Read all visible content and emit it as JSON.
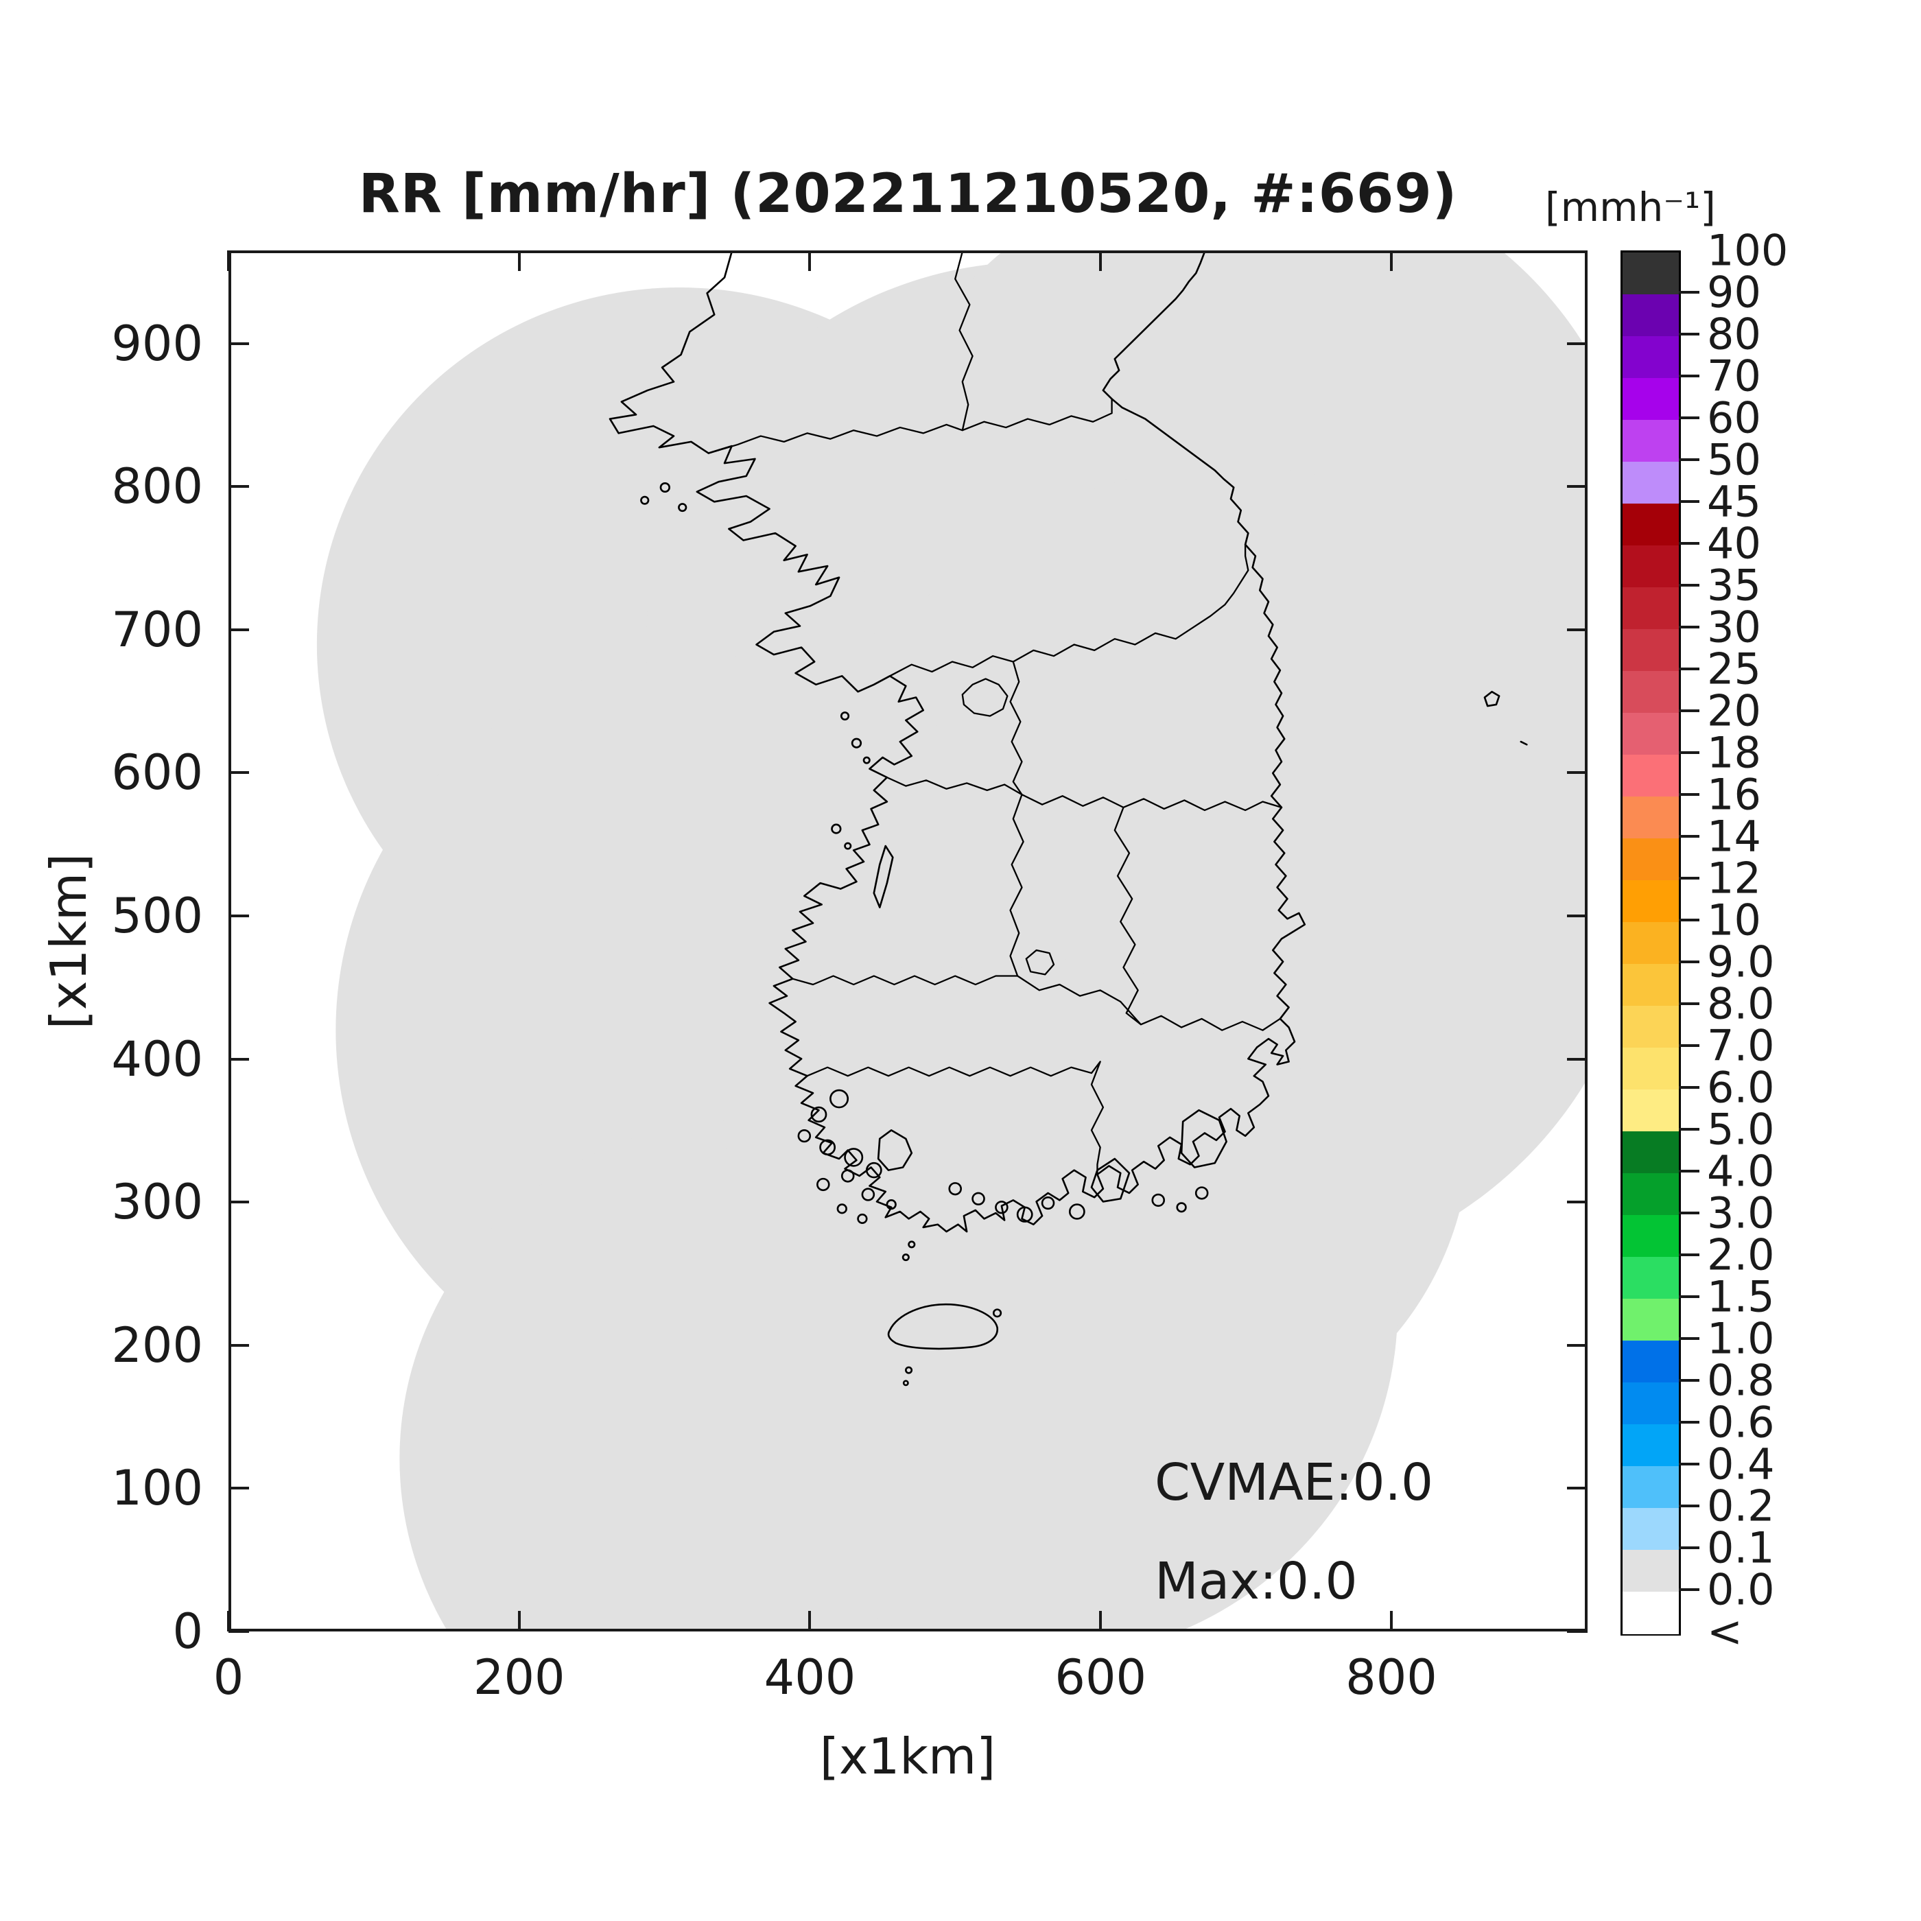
{
  "title": "RR [mm/hr] (202211210520, #:669)",
  "axes": {
    "x_label": "[x1km]",
    "y_label": "[x1km]",
    "x_ticks": [
      "0",
      "200",
      "400",
      "600",
      "800"
    ],
    "y_ticks": [
      "0",
      "100",
      "200",
      "300",
      "400",
      "500",
      "600",
      "700",
      "800",
      "900"
    ]
  },
  "annotations": {
    "cvmae": "CVMAE:0.0",
    "max": "Max:0.0"
  },
  "colorbar": {
    "unit": "[mmh⁻¹]",
    "labels": [
      "100",
      "90",
      "80",
      "70",
      "60",
      "50",
      "45",
      "40",
      "35",
      "30",
      "25",
      "20",
      "18",
      "16",
      "14",
      "12",
      "10",
      "9.0",
      "8.0",
      "7.0",
      "6.0",
      "5.0",
      "4.0",
      "3.0",
      "2.0",
      "1.5",
      "1.0",
      "0.8",
      "0.6",
      "0.4",
      "0.2",
      "0.1",
      "0.0",
      "<"
    ],
    "colors": [
      "#333333",
      "#6B02B0",
      "#8303CE",
      "#A602EB",
      "#BE41F0",
      "#BE8CFA",
      "#A50008",
      "#B30F1D",
      "#C0222F",
      "#CC3644",
      "#D84C5B",
      "#E56071",
      "#FB7077",
      "#FB8B52",
      "#FA9015",
      "#FF9F04",
      "#FBB221",
      "#FBC53A",
      "#FCD456",
      "#FDE26C",
      "#FEEC83",
      "#077C23",
      "#05A02B",
      "#03C434",
      "#2BDE62",
      "#70F16C",
      "#0071E8",
      "#018BF0",
      "#02A5F7",
      "#4FC0FA",
      "#9CD8FD",
      "#E1E1E1",
      "#FFFFFF"
    ]
  },
  "chart_data": {
    "type": "heatmap",
    "title": "RR [mm/hr] (202211210520, #:669)",
    "xlabel": "[x1km]",
    "ylabel": "[x1km]",
    "xlim": [
      0,
      935
    ],
    "ylim": [
      0,
      965
    ],
    "x_ticks": [
      0,
      200,
      400,
      600,
      800
    ],
    "y_ticks": [
      0,
      100,
      200,
      300,
      400,
      500,
      600,
      700,
      800,
      900
    ],
    "grid": false,
    "legend_position": "right-colorbar",
    "colorbar_unit": "[mmh⁻¹]",
    "colorbar_levels": [
      "100",
      "90",
      "80",
      "70",
      "60",
      "50",
      "45",
      "40",
      "35",
      "30",
      "25",
      "20",
      "18",
      "16",
      "14",
      "12",
      "10",
      "9.0",
      "8.0",
      "7.0",
      "6.0",
      "5.0",
      "4.0",
      "3.0",
      "2.0",
      "1.5",
      "1.0",
      "0.8",
      "0.6",
      "0.4",
      "0.2",
      "0.1",
      "0.0",
      "<"
    ],
    "colorbar_colors": [
      "#333333",
      "#6B02B0",
      "#8303CE",
      "#A602EB",
      "#BE41F0",
      "#BE8CFA",
      "#A50008",
      "#B30F1D",
      "#C0222F",
      "#CC3644",
      "#D84C5B",
      "#E56071",
      "#FB7077",
      "#FB8B52",
      "#FA9015",
      "#FF9F04",
      "#FBB221",
      "#FBC53A",
      "#FCD456",
      "#FDE26C",
      "#FEEC83",
      "#077C23",
      "#05A02B",
      "#03C434",
      "#2BDE62",
      "#70F16C",
      "#0071E8",
      "#018BF0",
      "#02A5F7",
      "#4FC0FA",
      "#9CD8FD",
      "#E1E1E1",
      "#FFFFFF"
    ],
    "timestamp": "202211210520",
    "station_count": 669,
    "cvmae": 0.0,
    "max_value": 0.0,
    "coverage_fill_color": "#E1E1E1",
    "coverage_value_class": "0.0–0.1 mm/hr (no precipitation echoes inside radar coverage)",
    "coverage_circles_km": [
      {
        "cx": 310,
        "cy": 690,
        "r": 250
      },
      {
        "cx": 555,
        "cy": 690,
        "r": 268
      },
      {
        "cx": 705,
        "cy": 760,
        "r": 268
      },
      {
        "cx": 690,
        "cy": 530,
        "r": 285
      },
      {
        "cx": 630,
        "cy": 350,
        "r": 225
      },
      {
        "cx": 335,
        "cy": 420,
        "r": 262
      },
      {
        "cx": 354,
        "cy": 120,
        "r": 237
      },
      {
        "cx": 560,
        "cy": 225,
        "r": 245
      }
    ]
  }
}
